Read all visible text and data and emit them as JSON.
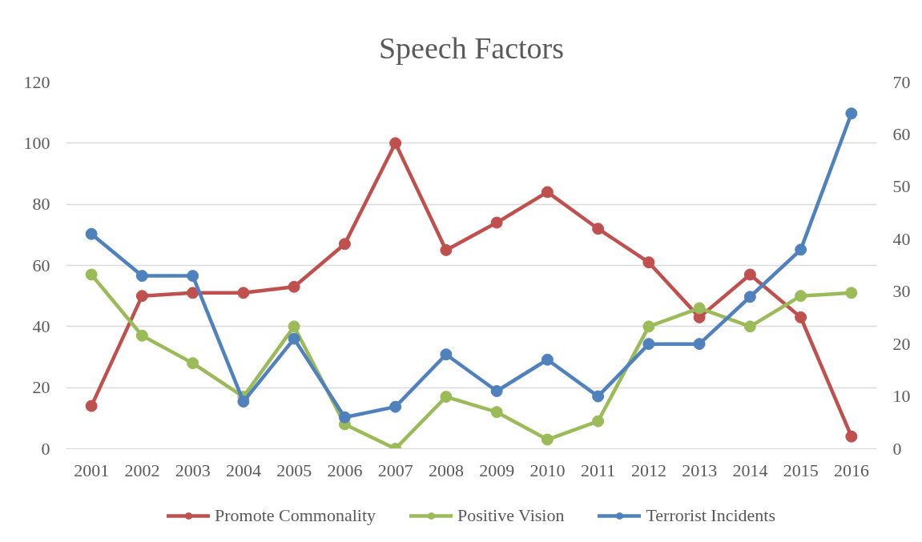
{
  "chart_data": {
    "type": "line",
    "title": "Speech Factors",
    "categories": [
      "2001",
      "2002",
      "2003",
      "2004",
      "2005",
      "2006",
      "2007",
      "2008",
      "2009",
      "2010",
      "2011",
      "2012",
      "2013",
      "2014",
      "2015",
      "2016"
    ],
    "series": [
      {
        "name": "Promote Commonality",
        "color": "#c0504d",
        "values": [
          14,
          50,
          51,
          51,
          53,
          67,
          100,
          65,
          74,
          84,
          72,
          61,
          43,
          57,
          43,
          4
        ]
      },
      {
        "name": "Positive Vision",
        "color": "#9bbb59",
        "values": [
          57,
          37,
          28,
          17,
          40,
          8,
          0,
          17,
          12,
          3,
          9,
          40,
          46,
          40,
          50,
          51
        ]
      },
      {
        "name": "Terrorist Incidents",
        "color": "#4f81bd",
        "axis": "y2",
        "values": [
          41,
          33,
          33,
          9,
          21,
          6,
          8,
          18,
          11,
          17,
          10,
          20,
          20,
          29,
          38,
          64
        ]
      }
    ],
    "ylim": [
      0,
      120
    ],
    "yticks": [
      0,
      20,
      40,
      60,
      80,
      100,
      120
    ],
    "y2lim": [
      0,
      70
    ],
    "y2ticks": [
      0,
      10,
      20,
      30,
      40,
      50,
      60,
      70
    ],
    "grid": "y",
    "legend": "bottom",
    "marker": "circle",
    "line_style": "solid"
  }
}
